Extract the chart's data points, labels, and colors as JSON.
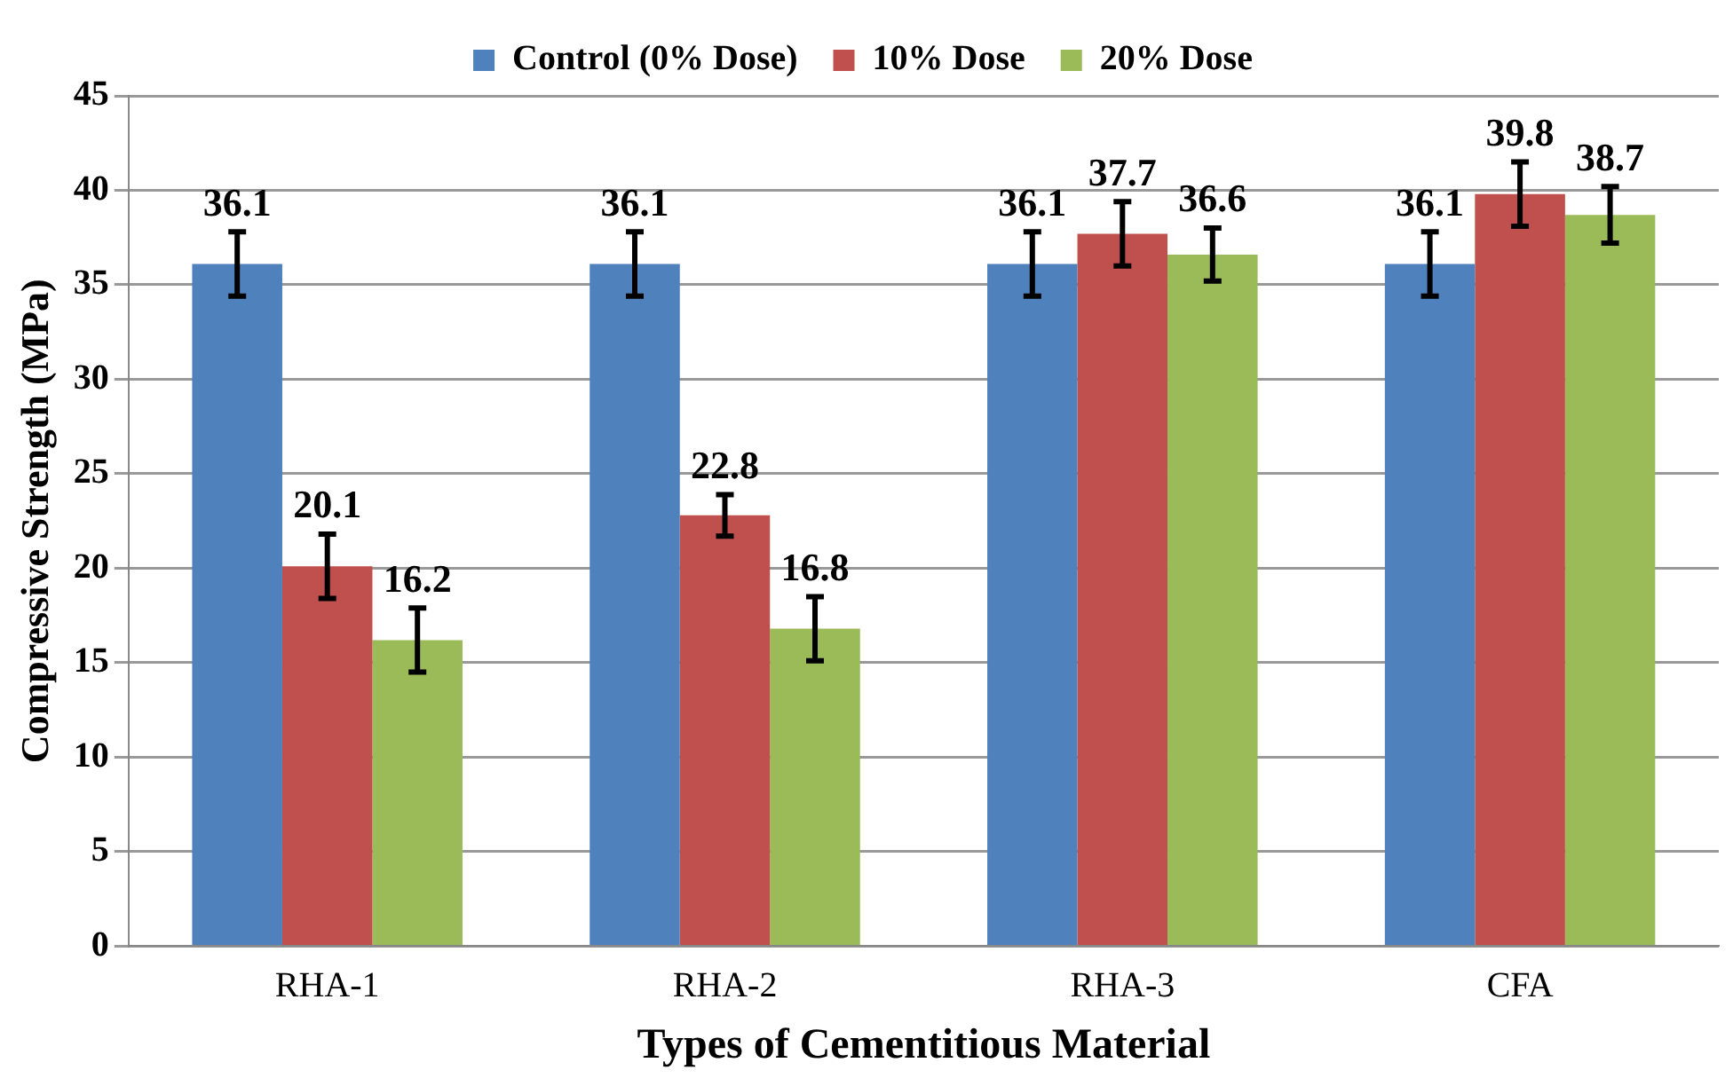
{
  "chart_data": {
    "type": "bar",
    "xlabel": "Types of Cementitious Material",
    "ylabel": "Compressive Strength (MPa)",
    "categories": [
      "RHA-1",
      "RHA-2",
      "RHA-3",
      "CFA"
    ],
    "series": [
      {
        "name": "Control (0% Dose)",
        "color": "#4f81bd",
        "values": [
          36.1,
          36.1,
          36.1,
          36.1
        ],
        "errors": [
          1.7,
          1.7,
          1.7,
          1.7
        ]
      },
      {
        "name": "10% Dose",
        "color": "#c0504d",
        "values": [
          20.1,
          22.8,
          37.7,
          39.8
        ],
        "errors": [
          1.7,
          1.1,
          1.7,
          1.7
        ]
      },
      {
        "name": "20% Dose",
        "color": "#9bbb59",
        "values": [
          16.2,
          16.8,
          36.6,
          38.7
        ],
        "errors": [
          1.7,
          1.7,
          1.4,
          1.5
        ]
      }
    ],
    "ylim": [
      0,
      45
    ],
    "yticks": [
      0,
      5,
      10,
      15,
      20,
      25,
      30,
      35,
      40,
      45
    ],
    "grid": "y",
    "legend": "top",
    "data_labels": true
  }
}
